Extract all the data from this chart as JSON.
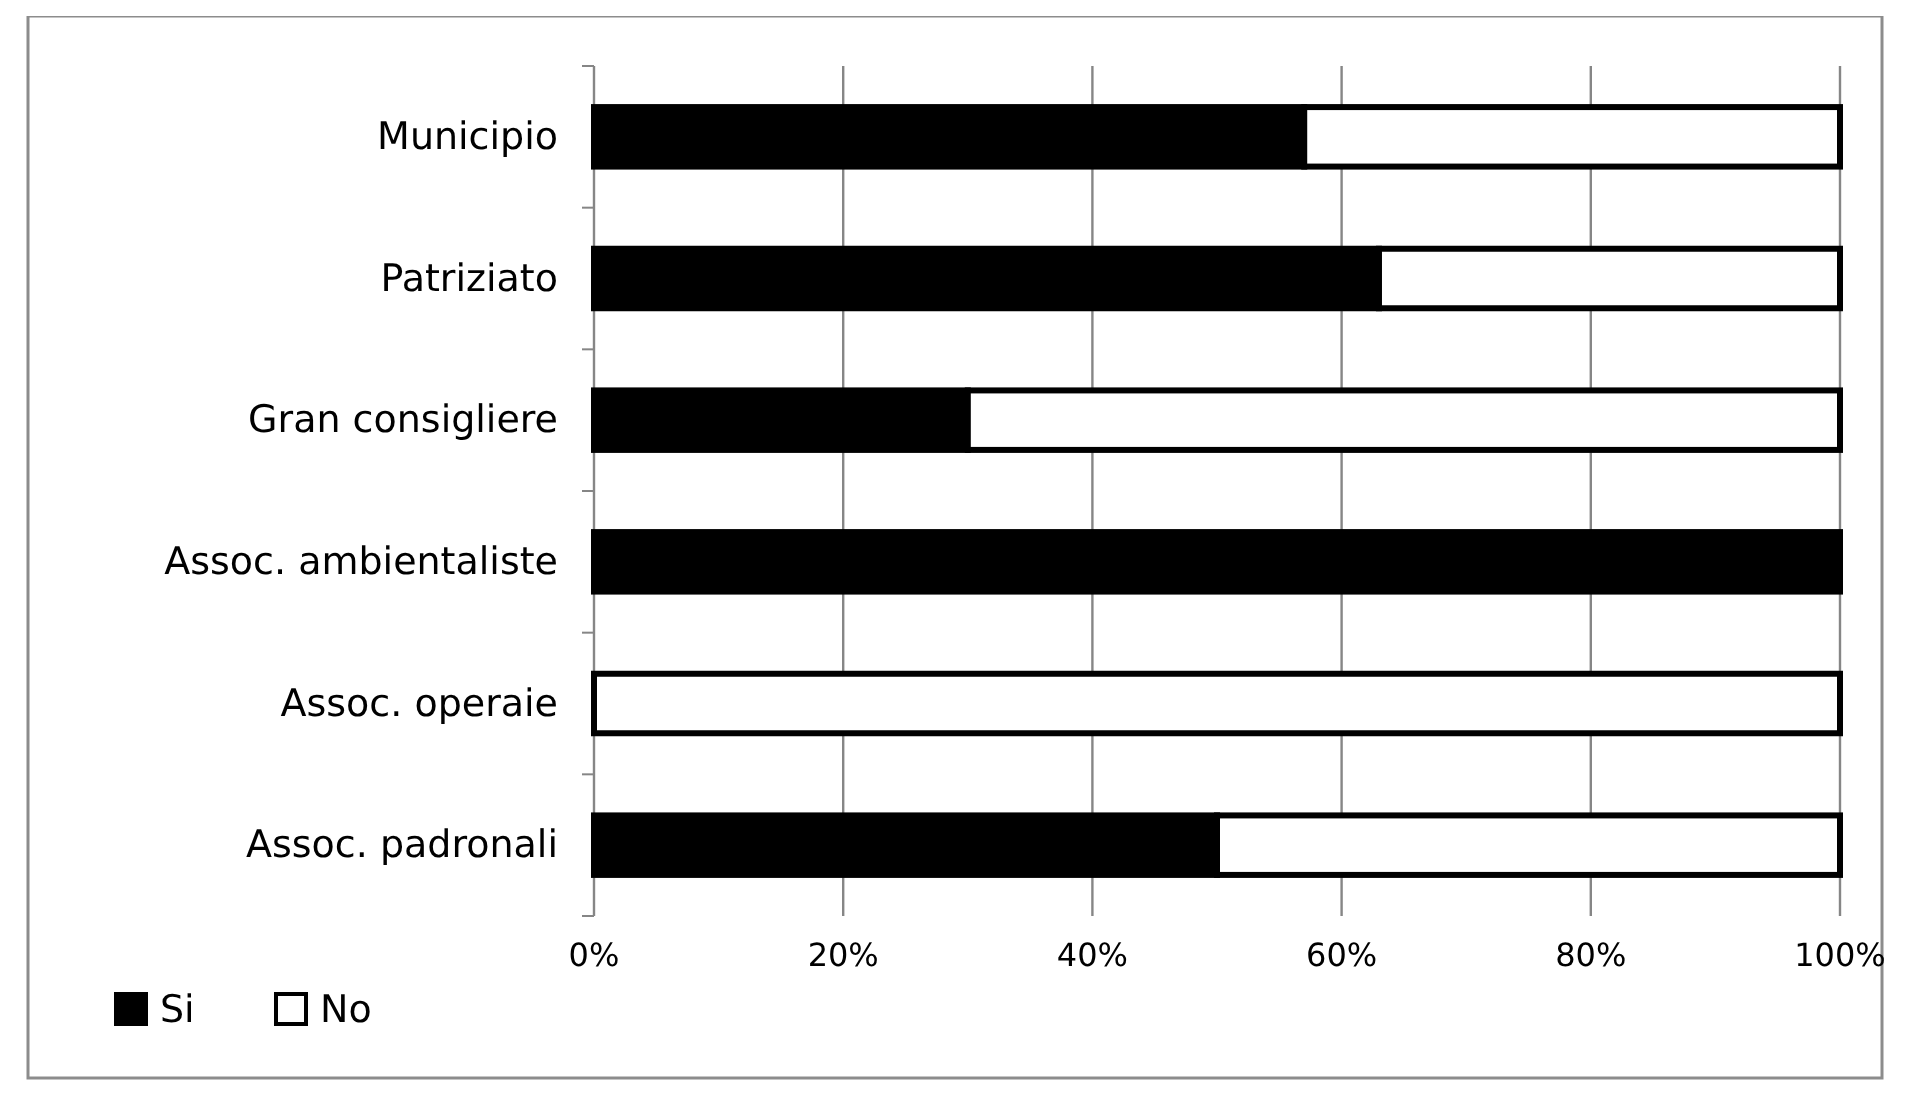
{
  "chart_data": {
    "type": "bar",
    "orientation": "horizontal",
    "stacked": true,
    "categories": [
      "Municipio",
      "Patriziato",
      "Gran consigliere",
      "Assoc. ambientaliste",
      "Assoc. operaie",
      "Assoc. padronali"
    ],
    "series": [
      {
        "name": "Si",
        "color": "#000000",
        "values": [
          57,
          63,
          30,
          100,
          0,
          50
        ]
      },
      {
        "name": "No",
        "color": "#ffffff",
        "values": [
          43,
          37,
          70,
          0,
          100,
          50
        ]
      }
    ],
    "xlim": [
      0,
      100
    ],
    "xticks": [
      {
        "value": 0,
        "label": "0%"
      },
      {
        "value": 20,
        "label": "20%"
      },
      {
        "value": 40,
        "label": "40%"
      },
      {
        "value": 60,
        "label": "60%"
      },
      {
        "value": 80,
        "label": "80%"
      },
      {
        "value": 100,
        "label": "100%"
      }
    ],
    "grid": "x",
    "legend": "bottom left"
  }
}
